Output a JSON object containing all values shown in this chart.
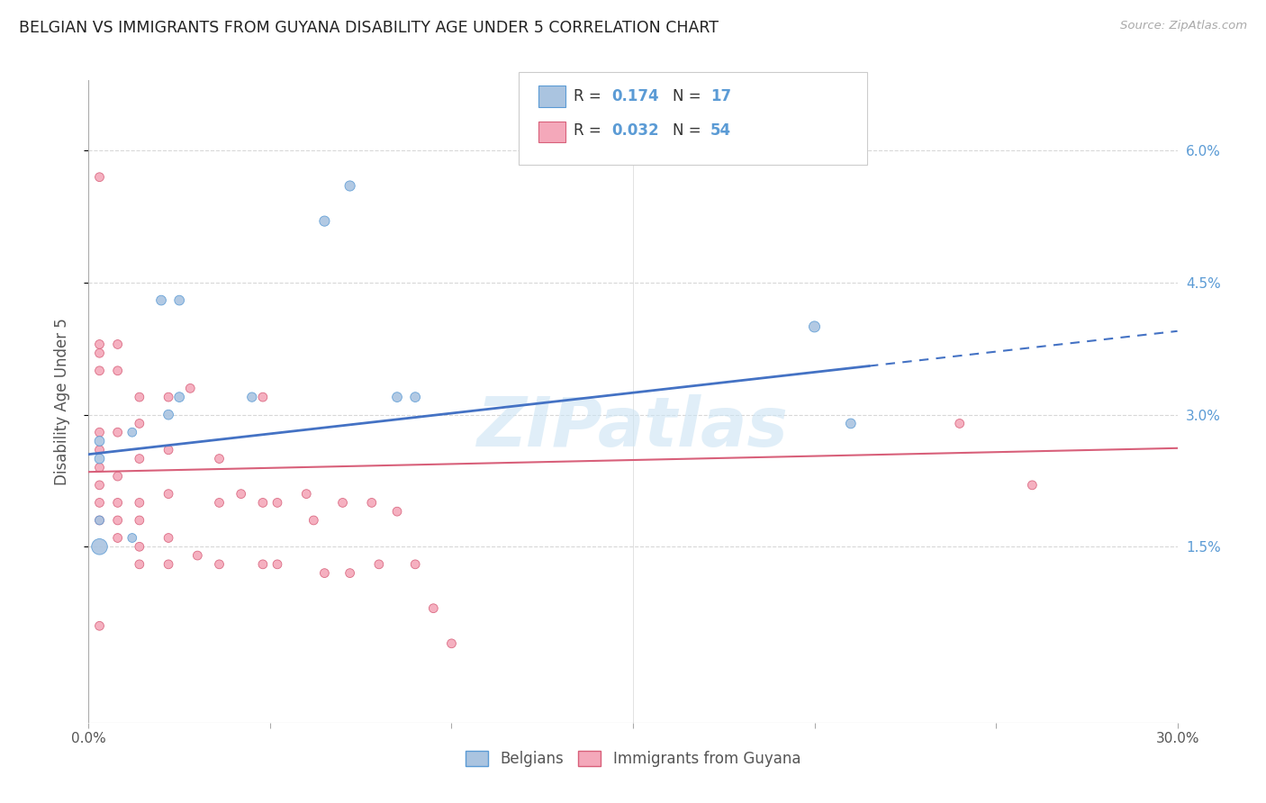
{
  "title": "BELGIAN VS IMMIGRANTS FROM GUYANA DISABILITY AGE UNDER 5 CORRELATION CHART",
  "source": "Source: ZipAtlas.com",
  "ylabel": "Disability Age Under 5",
  "background_color": "#ffffff",
  "watermark": "ZIPatlas",
  "xlim": [
    0.0,
    0.3
  ],
  "ylim": [
    -0.005,
    0.068
  ],
  "yticks": [
    0.015,
    0.03,
    0.045,
    0.06
  ],
  "ytick_labels": [
    "1.5%",
    "3.0%",
    "4.5%",
    "6.0%"
  ],
  "xtick_positions": [
    0.0,
    0.05,
    0.1,
    0.15,
    0.2,
    0.25,
    0.3
  ],
  "xtick_labels": [
    "0.0%",
    "",
    "",
    "",
    "",
    "",
    "30.0%"
  ],
  "grid_color": "#d8d8d8",
  "belgians": {
    "color": "#aac4e0",
    "edge_color": "#5b9bd5",
    "R": 0.174,
    "N": 17,
    "trend_color": "#4472c4",
    "trend_start_y": 0.0255,
    "trend_end_y": 0.0395,
    "trend_solid_end_x": 0.215,
    "scatter_x": [
      0.003,
      0.003,
      0.003,
      0.003,
      0.012,
      0.012,
      0.02,
      0.022,
      0.025,
      0.025,
      0.045,
      0.065,
      0.072,
      0.085,
      0.09,
      0.2,
      0.21
    ],
    "scatter_y": [
      0.027,
      0.025,
      0.018,
      0.015,
      0.028,
      0.016,
      0.043,
      0.03,
      0.043,
      0.032,
      0.032,
      0.052,
      0.056,
      0.032,
      0.032,
      0.04,
      0.029
    ],
    "scatter_sizes": [
      60,
      60,
      50,
      160,
      50,
      50,
      60,
      60,
      60,
      60,
      55,
      65,
      65,
      60,
      60,
      75,
      60
    ]
  },
  "immigrants": {
    "color": "#f4a8ba",
    "edge_color": "#d8607a",
    "R": 0.032,
    "N": 54,
    "trend_color": "#d8607a",
    "trend_start_y": 0.0235,
    "trend_end_y": 0.0262,
    "scatter_x": [
      0.003,
      0.003,
      0.003,
      0.003,
      0.003,
      0.003,
      0.003,
      0.003,
      0.003,
      0.003,
      0.003,
      0.008,
      0.008,
      0.008,
      0.008,
      0.008,
      0.008,
      0.008,
      0.014,
      0.014,
      0.014,
      0.014,
      0.014,
      0.014,
      0.014,
      0.022,
      0.022,
      0.022,
      0.022,
      0.022,
      0.028,
      0.03,
      0.036,
      0.036,
      0.036,
      0.042,
      0.048,
      0.048,
      0.048,
      0.052,
      0.052,
      0.06,
      0.062,
      0.065,
      0.07,
      0.072,
      0.078,
      0.08,
      0.085,
      0.09,
      0.095,
      0.1,
      0.24,
      0.26
    ],
    "scatter_y": [
      0.057,
      0.038,
      0.037,
      0.035,
      0.028,
      0.026,
      0.024,
      0.022,
      0.02,
      0.018,
      0.006,
      0.038,
      0.035,
      0.028,
      0.023,
      0.02,
      0.018,
      0.016,
      0.032,
      0.029,
      0.025,
      0.02,
      0.018,
      0.015,
      0.013,
      0.032,
      0.026,
      0.021,
      0.016,
      0.013,
      0.033,
      0.014,
      0.025,
      0.02,
      0.013,
      0.021,
      0.032,
      0.02,
      0.013,
      0.02,
      0.013,
      0.021,
      0.018,
      0.012,
      0.02,
      0.012,
      0.02,
      0.013,
      0.019,
      0.013,
      0.008,
      0.004,
      0.029,
      0.022
    ],
    "scatter_sizes": [
      50,
      50,
      50,
      50,
      50,
      50,
      50,
      50,
      50,
      50,
      50,
      50,
      50,
      50,
      50,
      50,
      50,
      50,
      50,
      50,
      50,
      50,
      50,
      50,
      50,
      50,
      50,
      50,
      50,
      50,
      50,
      50,
      50,
      50,
      50,
      50,
      50,
      50,
      50,
      50,
      50,
      50,
      50,
      50,
      50,
      50,
      50,
      50,
      50,
      50,
      50,
      50,
      50,
      50
    ]
  },
  "legend_blue_label": "Belgians",
  "legend_pink_label": "Immigrants from Guyana",
  "legend_blue_color": "#5b9bd5",
  "legend_pink_color": "#d8607a",
  "R_text_color": "#5b9bd5",
  "N_text_color": "#5b9bd5",
  "label_dark_color": "#333333"
}
